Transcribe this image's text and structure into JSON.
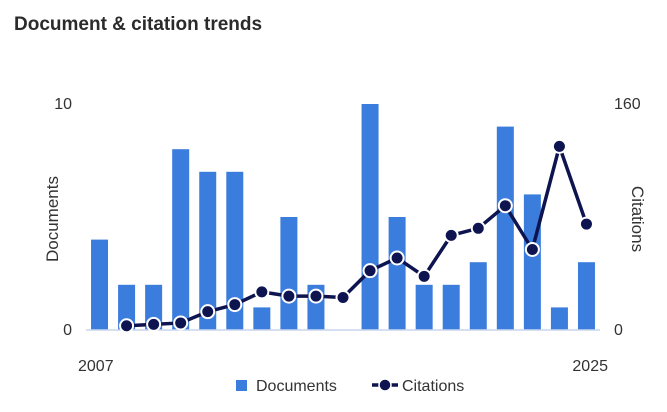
{
  "chart_data": {
    "type": "bar+line",
    "title": "Document & citation trends",
    "x": [
      2007,
      2008,
      2009,
      2010,
      2011,
      2012,
      2013,
      2014,
      2015,
      2016,
      2017,
      2018,
      2019,
      2020,
      2021,
      2022,
      2023,
      2024,
      2025
    ],
    "x_tick_labels": [
      "2007",
      "2025"
    ],
    "series": [
      {
        "name": "Documents",
        "type": "bar",
        "axis": "left",
        "color": "#3b7ddd",
        "values": [
          4,
          2,
          2,
          8,
          7,
          7,
          1,
          5,
          2,
          0,
          10,
          5,
          2,
          2,
          3,
          9,
          6,
          1,
          3
        ]
      },
      {
        "name": "Citations",
        "type": "line",
        "axis": "right",
        "color": "#0d1450",
        "values": [
          null,
          3,
          4,
          5,
          13,
          18,
          27,
          24,
          24,
          23,
          42,
          51,
          38,
          67,
          72,
          88,
          57,
          130,
          75
        ]
      }
    ],
    "y_left": {
      "label": "Documents",
      "min": 0,
      "max": 10,
      "ticks": [
        "0",
        "10"
      ]
    },
    "y_right": {
      "label": "Citations",
      "min": 0,
      "max": 160,
      "ticks": [
        "0",
        "160"
      ]
    },
    "legend": {
      "position": "bottom"
    }
  }
}
